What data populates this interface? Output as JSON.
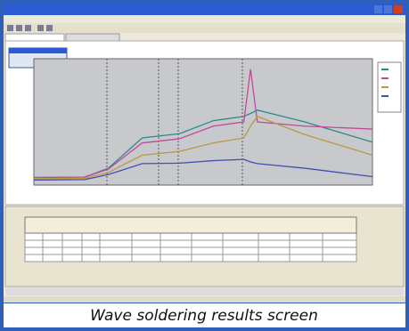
{
  "caption": "Wave soldering results screen",
  "chart_data": {
    "type": "line",
    "x": [
      0,
      15,
      22,
      32,
      43,
      53,
      62,
      64,
      66,
      80,
      100
    ],
    "xlim": [
      0,
      100
    ],
    "ylim": [
      0,
      300
    ],
    "series": [
      {
        "color": "#2a8a8a",
        "values": [
          18,
          19,
          40,
          112,
          122,
          153,
          163,
          170,
          178,
          150,
          102
        ]
      },
      {
        "color": "#c04a9a",
        "values": [
          18,
          19,
          38,
          100,
          110,
          140,
          150,
          275,
          150,
          140,
          133
        ]
      },
      {
        "color": "#b89a40",
        "values": [
          15,
          16,
          30,
          71,
          80,
          100,
          112,
          140,
          163,
          120,
          71
        ]
      },
      {
        "color": "#4050b0",
        "values": [
          12,
          13,
          25,
          51,
          52,
          58,
          61,
          55,
          51,
          40,
          20
        ]
      }
    ]
  }
}
